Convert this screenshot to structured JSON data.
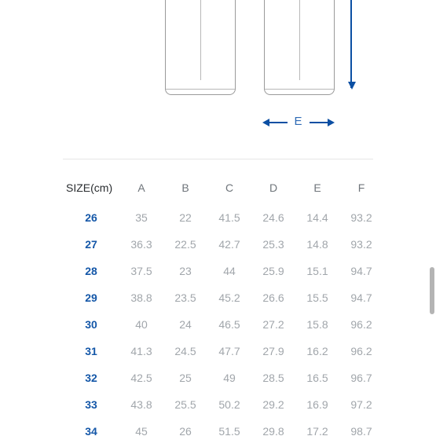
{
  "diagram": {
    "e_label": "E"
  },
  "table": {
    "header_label": "SIZE(cm)",
    "columns": [
      "A",
      "B",
      "C",
      "D",
      "E",
      "F"
    ],
    "rows": [
      {
        "size": "26",
        "vals": [
          "35",
          "22",
          "41.5",
          "24.6",
          "14.4",
          "93.2"
        ]
      },
      {
        "size": "27",
        "vals": [
          "36.3",
          "22.5",
          "42.7",
          "25.3",
          "14.8",
          "93.2"
        ]
      },
      {
        "size": "28",
        "vals": [
          "37.5",
          "23",
          "44",
          "25.9",
          "15.1",
          "94.7"
        ]
      },
      {
        "size": "29",
        "vals": [
          "38.8",
          "23.5",
          "45.2",
          "26.6",
          "15.5",
          "94.7"
        ]
      },
      {
        "size": "30",
        "vals": [
          "40",
          "24",
          "46.5",
          "27.2",
          "15.8",
          "96.2"
        ]
      },
      {
        "size": "31",
        "vals": [
          "41.3",
          "24.5",
          "47.7",
          "27.9",
          "16.2",
          "96.2"
        ]
      },
      {
        "size": "32",
        "vals": [
          "42.5",
          "25",
          "49",
          "28.5",
          "16.5",
          "96.7"
        ]
      },
      {
        "size": "33",
        "vals": [
          "43.8",
          "25.5",
          "50.2",
          "29.2",
          "16.9",
          "97.2"
        ]
      },
      {
        "size": "34",
        "vals": [
          "45",
          "26",
          "51.5",
          "29.8",
          "17.2",
          "98.7"
        ]
      }
    ]
  },
  "colors": {
    "accent_blue": "#1457a8",
    "arrow_blue": "#0b4fa3",
    "header_grey": "#6f757b",
    "value_grey": "#a1a6ab",
    "line_grey": "#9a9a9a",
    "divider": "#e6e6e6",
    "background": "#ffffff"
  }
}
